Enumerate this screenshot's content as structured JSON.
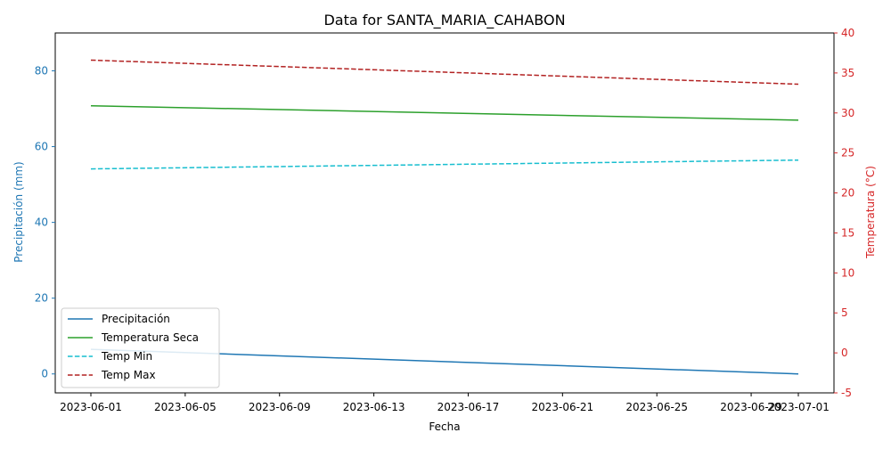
{
  "chart_data": {
    "type": "line",
    "title": "Data for SANTA_MARIA_CAHABON",
    "xlabel": "Fecha",
    "ylabel_left": "Precipitación (mm)",
    "ylabel_right": "Temperatura (°C)",
    "x": [
      "2023-06-01",
      "2023-07-01"
    ],
    "x_ticks": [
      "2023-06-01",
      "2023-06-05",
      "2023-06-09",
      "2023-06-13",
      "2023-06-17",
      "2023-06-21",
      "2023-06-25",
      "2023-06-29",
      "2023-07-01"
    ],
    "ylim_left": [
      -5,
      90
    ],
    "yticks_left": [
      0,
      20,
      40,
      60,
      80
    ],
    "ylim_right": [
      -5,
      40
    ],
    "yticks_right": [
      -5,
      0,
      5,
      10,
      15,
      20,
      25,
      30,
      35,
      40
    ],
    "left_axis_color": "#1f77b4",
    "right_axis_color": "#d62728",
    "grid": false,
    "legend_position": "lower-left",
    "series": [
      {
        "name": "Precipitación",
        "axis": "left",
        "color": "#1f77b4",
        "dash": "solid",
        "values": [
          6.5,
          0.0
        ]
      },
      {
        "name": "Temperatura Seca",
        "axis": "right",
        "color": "#2ca02c",
        "dash": "solid",
        "values": [
          30.9,
          29.1
        ]
      },
      {
        "name": "Temp Min",
        "axis": "right",
        "color": "#17becf",
        "dash": "dashed",
        "values": [
          23.0,
          24.1
        ]
      },
      {
        "name": "Temp Max",
        "axis": "right",
        "color": "#b22222",
        "dash": "dashed",
        "values": [
          36.6,
          33.6
        ]
      }
    ]
  }
}
